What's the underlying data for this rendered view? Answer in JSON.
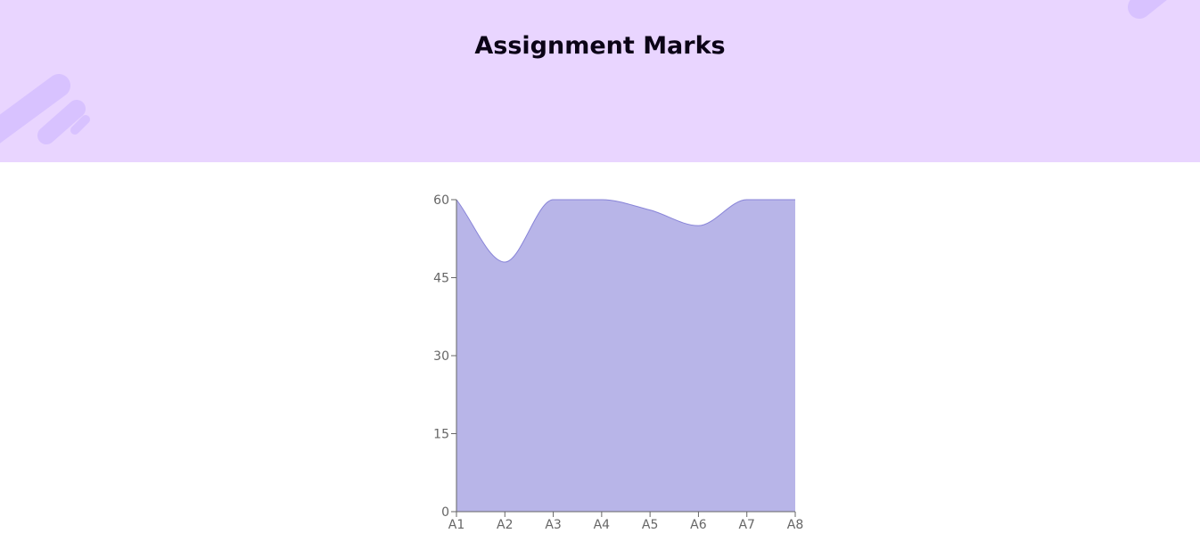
{
  "header": {
    "title": "Assignment Marks",
    "background": "#e9d5ff",
    "decoration_color": "#d8c2ff"
  },
  "chart_data": {
    "type": "area",
    "categories": [
      "A1",
      "A2",
      "A3",
      "A4",
      "A5",
      "A6",
      "A7",
      "A8"
    ],
    "series": [
      {
        "values": [
          60,
          48,
          60,
          60,
          58,
          55,
          60,
          60
        ]
      }
    ],
    "title": "Assignment Marks",
    "xlabel": "",
    "ylabel": "",
    "ylim": [
      0,
      60
    ],
    "yticks": [
      0,
      15,
      30,
      45,
      60
    ],
    "grid": false,
    "legend": "none",
    "fill_color": "#b8b5e8",
    "stroke_color": "#8884d8",
    "axis_color": "#666666"
  }
}
